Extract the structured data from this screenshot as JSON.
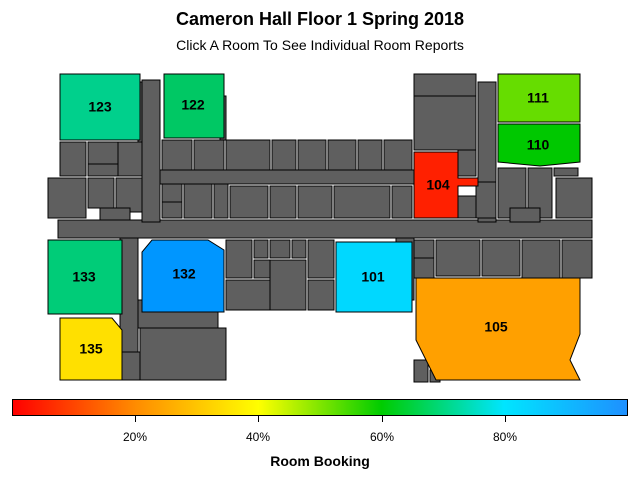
{
  "header": {
    "title": "Cameron Hall Floor 1 Spring 2018",
    "subtitle": "Click A Room To See Individual Room Reports"
  },
  "rooms": [
    {
      "id": "123",
      "label": "123",
      "booking": 0.82,
      "color": "#00d08c"
    },
    {
      "id": "122",
      "label": "122",
      "booking": 0.74,
      "color": "#00c864"
    },
    {
      "id": "111",
      "label": "111",
      "booking": 0.62,
      "color": "#66dd00"
    },
    {
      "id": "110",
      "label": "110",
      "booking": 0.68,
      "color": "#00c800"
    },
    {
      "id": "104",
      "label": "104",
      "booking": 0.02,
      "color": "#ff2000"
    },
    {
      "id": "133",
      "label": "133",
      "booking": 0.76,
      "color": "#00cc78"
    },
    {
      "id": "132",
      "label": "132",
      "booking": 0.98,
      "color": "#0096ff"
    },
    {
      "id": "101",
      "label": "101",
      "booking": 0.9,
      "color": "#00d8ff"
    },
    {
      "id": "105",
      "label": "105",
      "booking": 0.3,
      "color": "#ffa000"
    },
    {
      "id": "135",
      "label": "135",
      "booking": 0.45,
      "color": "#ffe000"
    }
  ],
  "legend": {
    "title": "Room Booking",
    "ticks": [
      "20%",
      "40%",
      "60%",
      "80%"
    ],
    "colors": [
      "#ff0000",
      "#ff8c00",
      "#ffff00",
      "#00cc00",
      "#00e5ff",
      "#1e90ff"
    ]
  }
}
